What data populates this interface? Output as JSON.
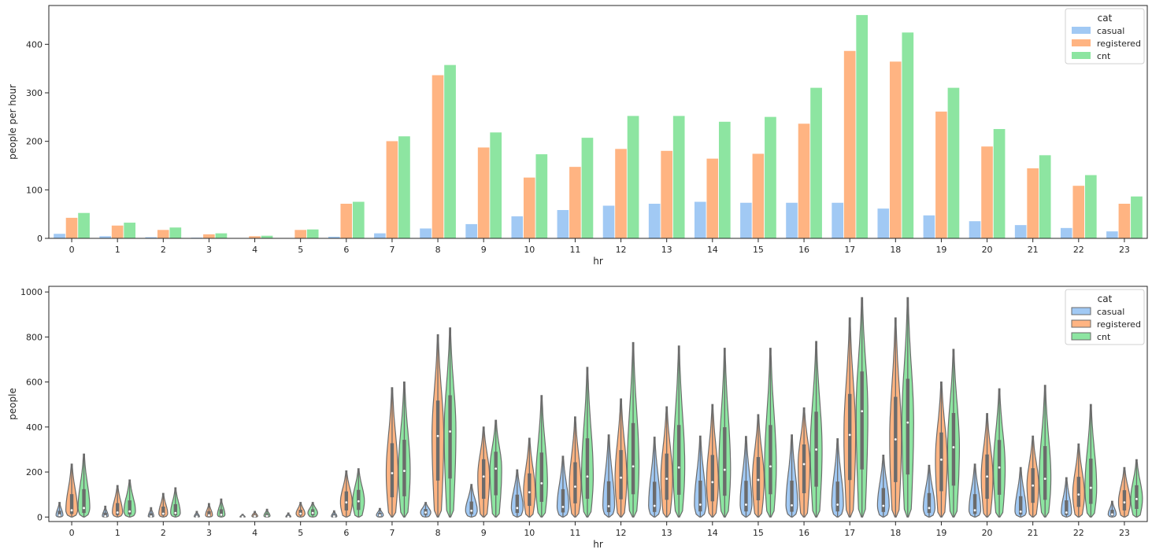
{
  "colors": {
    "casual": "#a1c9f4",
    "registered": "#ffb482",
    "cnt": "#8de5a1",
    "violin_edge": "#6b6b6b"
  },
  "chart_data": [
    {
      "type": "bar",
      "xlabel": "hr",
      "ylabel": "people per hour",
      "ylim": [
        0,
        480
      ],
      "yticks": [
        0,
        100,
        200,
        300,
        400
      ],
      "legend": {
        "title": "cat",
        "placement": "top-right"
      },
      "categories": [
        "0",
        "1",
        "2",
        "3",
        "4",
        "5",
        "6",
        "7",
        "8",
        "9",
        "10",
        "11",
        "12",
        "13",
        "14",
        "15",
        "16",
        "17",
        "18",
        "19",
        "20",
        "21",
        "22",
        "23"
      ],
      "series": [
        {
          "name": "casual",
          "values": [
            10,
            5,
            3,
            2,
            1,
            1,
            4,
            11,
            21,
            30,
            46,
            59,
            68,
            72,
            76,
            74,
            74,
            74,
            62,
            48,
            36,
            28,
            22,
            15
          ]
        },
        {
          "name": "registered",
          "values": [
            43,
            27,
            18,
            9,
            5,
            18,
            72,
            201,
            337,
            188,
            126,
            148,
            185,
            181,
            165,
            175,
            237,
            387,
            365,
            262,
            190,
            145,
            109,
            72
          ]
        },
        {
          "name": "cnt",
          "values": [
            53,
            33,
            23,
            11,
            6,
            19,
            76,
            211,
            358,
            219,
            174,
            208,
            253,
            253,
            241,
            251,
            311,
            461,
            425,
            311,
            226,
            172,
            131,
            87
          ]
        }
      ]
    },
    {
      "type": "violin",
      "xlabel": "hr",
      "ylabel": "people",
      "ylim": [
        -20,
        1025
      ],
      "yticks": [
        0,
        200,
        400,
        600,
        800,
        1000
      ],
      "legend": {
        "title": "cat",
        "placement": "top-right"
      },
      "categories": [
        "0",
        "1",
        "2",
        "3",
        "4",
        "5",
        "6",
        "7",
        "8",
        "9",
        "10",
        "11",
        "12",
        "13",
        "14",
        "15",
        "16",
        "17",
        "18",
        "19",
        "20",
        "21",
        "22",
        "23"
      ],
      "series": [
        {
          "name": "casual",
          "median": [
            8,
            4,
            3,
            2,
            1,
            1,
            3,
            8,
            20,
            28,
            40,
            45,
            48,
            50,
            55,
            55,
            52,
            55,
            50,
            40,
            30,
            24,
            20,
            12
          ],
          "max": [
            65,
            48,
            42,
            25,
            12,
            18,
            28,
            38,
            65,
            145,
            210,
            270,
            365,
            355,
            360,
            358,
            365,
            348,
            275,
            230,
            235,
            220,
            175,
            70
          ]
        },
        {
          "name": "registered",
          "median": [
            30,
            20,
            15,
            8,
            4,
            15,
            65,
            195,
            360,
            180,
            110,
            135,
            175,
            170,
            155,
            165,
            235,
            365,
            345,
            255,
            180,
            140,
            100,
            65
          ],
          "max": [
            235,
            140,
            105,
            60,
            25,
            65,
            205,
            575,
            810,
            400,
            350,
            445,
            525,
            490,
            500,
            455,
            485,
            885,
            885,
            600,
            460,
            360,
            325,
            220
          ]
        },
        {
          "name": "cnt",
          "median": [
            40,
            25,
            18,
            10,
            5,
            18,
            70,
            205,
            380,
            215,
            150,
            180,
            225,
            220,
            210,
            225,
            300,
            470,
            420,
            310,
            220,
            170,
            130,
            80
          ],
          "max": [
            280,
            165,
            130,
            80,
            35,
            65,
            215,
            600,
            840,
            430,
            540,
            665,
            775,
            760,
            750,
            750,
            780,
            975,
            975,
            745,
            570,
            585,
            500,
            255
          ]
        }
      ]
    }
  ]
}
